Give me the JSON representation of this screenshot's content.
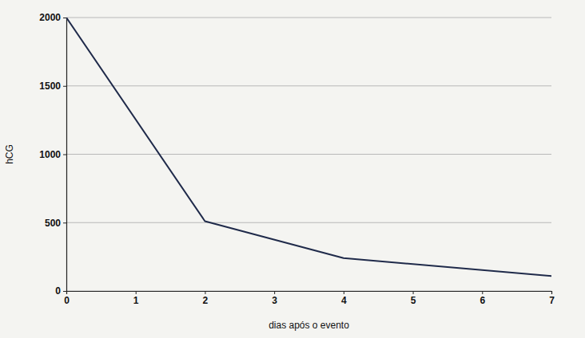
{
  "chart_data": {
    "type": "line",
    "x_label": "dias após o evento",
    "y_label": "hCG",
    "x": [
      0,
      2,
      4,
      7
    ],
    "values": [
      2000,
      510,
      240,
      110
    ],
    "color": "#1f2a4a",
    "xlim": [
      0,
      7
    ],
    "xticks": [
      0,
      1,
      2,
      3,
      4,
      5,
      6,
      7
    ],
    "ylim": [
      0,
      2000
    ],
    "yticks": [
      0,
      500,
      1000,
      1500,
      2000
    ],
    "grid": true
  }
}
